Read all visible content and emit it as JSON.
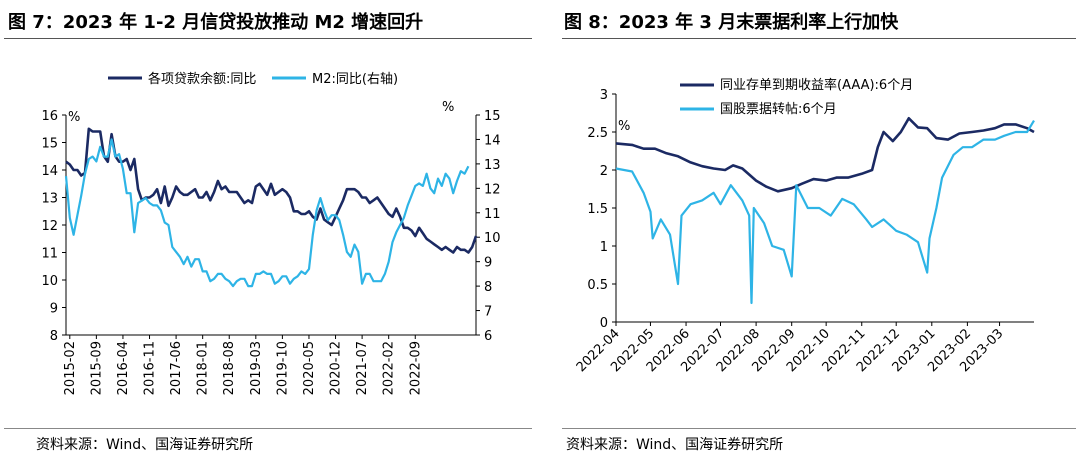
{
  "colors": {
    "navy": "#1B2A63",
    "cyan": "#2EB4E6"
  },
  "left": {
    "title": "图 7：2023 年 1-2 月信贷投放推动 M2 增速回升",
    "source": "资料来源：Wind、国海证券研究所"
  },
  "right": {
    "title": "图 8：2023 年 3 月末票据利率上行加快",
    "source": "资料来源：Wind、国海证券研究所"
  },
  "chart_data": [
    {
      "type": "line",
      "legend_position": "top",
      "y_left_unit": "%",
      "y_right_unit": "%",
      "ylim_left": [
        8,
        16
      ],
      "ylim_right": [
        6,
        15
      ],
      "y_left_ticks": [
        "8",
        "9",
        "10",
        "11",
        "12",
        "13",
        "14",
        "15",
        "16"
      ],
      "y_right_ticks": [
        "6",
        "7",
        "8",
        "9",
        "10",
        "11",
        "12",
        "13",
        "14",
        "15"
      ],
      "x_tick_labels": [
        "2015-02",
        "2015-09",
        "2016-04",
        "2016-11",
        "2017-06",
        "2018-01",
        "2018-08",
        "2019-03",
        "2019-10",
        "2020-05",
        "2020-12",
        "2021-07",
        "2022-02",
        "2022-09"
      ],
      "x_start": "2015-01",
      "series": [
        {
          "name": "各项贷款余额:同比",
          "axis": "left",
          "color": "#1B2A63",
          "values": [
            14.3,
            14.2,
            14.0,
            14.0,
            13.8,
            13.9,
            15.5,
            15.4,
            15.4,
            15.4,
            14.5,
            14.3,
            15.3,
            14.5,
            14.3,
            14.3,
            14.4,
            14.0,
            14.4,
            13.3,
            12.9,
            13.0,
            13.0,
            13.1,
            13.3,
            12.8,
            13.4,
            12.7,
            13.0,
            13.4,
            13.2,
            13.1,
            13.1,
            13.2,
            13.3,
            13.0,
            13.0,
            13.2,
            12.9,
            13.2,
            13.6,
            13.3,
            13.4,
            13.2,
            13.2,
            13.2,
            13.0,
            12.8,
            12.9,
            12.8,
            13.4,
            13.5,
            13.3,
            13.1,
            13.5,
            13.1,
            13.2,
            13.3,
            13.2,
            13.0,
            12.5,
            12.5,
            12.4,
            12.4,
            12.5,
            12.3,
            12.2,
            12.6,
            12.2,
            12.1,
            12.0,
            12.3,
            12.6,
            12.9,
            13.3,
            13.3,
            13.3,
            13.2,
            13.0,
            13.0,
            12.8,
            12.9,
            13.0,
            12.8,
            12.6,
            12.4,
            12.3,
            12.6,
            12.3,
            11.9,
            11.9,
            11.8,
            11.6,
            11.9,
            11.7,
            11.5,
            11.4,
            11.3,
            11.2,
            11.1,
            11.2,
            11.1,
            11.0,
            11.2,
            11.1,
            11.1,
            11.0,
            11.2,
            11.6
          ]
        },
        {
          "name": "M2:同比(右轴)",
          "axis": "right",
          "color": "#2EB4E6",
          "values": [
            12.5,
            10.8,
            10.1,
            10.9,
            11.7,
            12.6,
            13.2,
            13.3,
            13.1,
            13.7,
            13.3,
            13.3,
            14.0,
            13.3,
            13.4,
            12.8,
            11.8,
            11.8,
            10.2,
            11.4,
            11.5,
            11.6,
            11.4,
            11.3,
            11.3,
            11.1,
            10.6,
            10.5,
            9.6,
            9.4,
            9.2,
            8.9,
            9.2,
            8.8,
            9.1,
            9.1,
            8.6,
            8.6,
            8.2,
            8.3,
            8.5,
            8.5,
            8.3,
            8.2,
            8.0,
            8.2,
            8.3,
            8.3,
            8.0,
            8.0,
            8.5,
            8.5,
            8.6,
            8.5,
            8.5,
            8.1,
            8.2,
            8.4,
            8.4,
            8.1,
            8.3,
            8.4,
            8.6,
            8.5,
            8.7,
            10.1,
            11.1,
            11.6,
            11.1,
            10.7,
            10.9,
            10.9,
            10.7,
            10.1,
            9.4,
            9.2,
            9.7,
            9.4,
            8.1,
            8.5,
            8.5,
            8.2,
            8.2,
            8.2,
            8.5,
            9.0,
            9.8,
            10.2,
            10.5,
            10.8,
            11.3,
            11.7,
            12.1,
            12.2,
            12.1,
            12.6,
            12.0,
            11.8,
            12.4,
            12.1,
            12.6,
            12.4,
            11.8,
            12.3,
            12.7,
            12.6,
            12.9
          ]
        }
      ]
    },
    {
      "type": "line",
      "legend_position": "top",
      "y_unit": "%",
      "ylim": [
        0,
        3
      ],
      "y_ticks": [
        "0",
        "0.5",
        "1",
        "1.5",
        "2",
        "2.5",
        "3"
      ],
      "x_tick_labels": [
        "2022-04",
        "2022-05",
        "2022-06",
        "2022-07",
        "2022-08",
        "2022-09",
        "2022-10",
        "2022-11",
        "2022-12",
        "2023-01",
        "2023-02",
        "2023-03"
      ],
      "x_start": "2022-04-01",
      "x_end": "2023-03-31",
      "series": [
        {
          "name": "同业存单到期收益率(AAA):6个月",
          "color": "#1B2A63",
          "points": [
            [
              "2022-04-01",
              2.35
            ],
            [
              "2022-04-15",
              2.33
            ],
            [
              "2022-04-25",
              2.28
            ],
            [
              "2022-05-05",
              2.28
            ],
            [
              "2022-05-15",
              2.22
            ],
            [
              "2022-05-25",
              2.18
            ],
            [
              "2022-06-05",
              2.1
            ],
            [
              "2022-06-15",
              2.05
            ],
            [
              "2022-06-25",
              2.02
            ],
            [
              "2022-07-05",
              2.0
            ],
            [
              "2022-07-12",
              2.06
            ],
            [
              "2022-07-20",
              2.02
            ],
            [
              "2022-08-01",
              1.86
            ],
            [
              "2022-08-10",
              1.78
            ],
            [
              "2022-08-20",
              1.72
            ],
            [
              "2022-09-01",
              1.76
            ],
            [
              "2022-09-10",
              1.82
            ],
            [
              "2022-09-20",
              1.88
            ],
            [
              "2022-10-01",
              1.86
            ],
            [
              "2022-10-10",
              1.9
            ],
            [
              "2022-10-20",
              1.9
            ],
            [
              "2022-11-01",
              1.95
            ],
            [
              "2022-11-10",
              2.0
            ],
            [
              "2022-11-15",
              2.3
            ],
            [
              "2022-11-20",
              2.5
            ],
            [
              "2022-11-28",
              2.38
            ],
            [
              "2022-12-05",
              2.5
            ],
            [
              "2022-12-12",
              2.68
            ],
            [
              "2022-12-20",
              2.56
            ],
            [
              "2022-12-28",
              2.55
            ],
            [
              "2023-01-05",
              2.42
            ],
            [
              "2023-01-15",
              2.4
            ],
            [
              "2023-01-25",
              2.48
            ],
            [
              "2023-02-05",
              2.5
            ],
            [
              "2023-02-15",
              2.52
            ],
            [
              "2023-02-25",
              2.55
            ],
            [
              "2023-03-05",
              2.6
            ],
            [
              "2023-03-15",
              2.6
            ],
            [
              "2023-03-25",
              2.55
            ],
            [
              "2023-03-31",
              2.5
            ]
          ]
        },
        {
          "name": "国股票据转帖:6个月",
          "color": "#2EB4E6",
          "points": [
            [
              "2022-04-01",
              2.02
            ],
            [
              "2022-04-15",
              1.98
            ],
            [
              "2022-04-25",
              1.7
            ],
            [
              "2022-05-01",
              1.45
            ],
            [
              "2022-05-03",
              1.1
            ],
            [
              "2022-05-10",
              1.35
            ],
            [
              "2022-05-18",
              1.15
            ],
            [
              "2022-05-25",
              0.5
            ],
            [
              "2022-05-28",
              1.4
            ],
            [
              "2022-06-05",
              1.55
            ],
            [
              "2022-06-15",
              1.6
            ],
            [
              "2022-06-25",
              1.7
            ],
            [
              "2022-07-01",
              1.55
            ],
            [
              "2022-07-10",
              1.8
            ],
            [
              "2022-07-20",
              1.6
            ],
            [
              "2022-07-26",
              1.4
            ],
            [
              "2022-07-28",
              0.25
            ],
            [
              "2022-07-30",
              1.5
            ],
            [
              "2022-08-08",
              1.3
            ],
            [
              "2022-08-15",
              1.0
            ],
            [
              "2022-08-25",
              0.95
            ],
            [
              "2022-09-01",
              0.6
            ],
            [
              "2022-09-05",
              1.8
            ],
            [
              "2022-09-15",
              1.5
            ],
            [
              "2022-09-25",
              1.5
            ],
            [
              "2022-10-05",
              1.4
            ],
            [
              "2022-10-15",
              1.62
            ],
            [
              "2022-10-25",
              1.55
            ],
            [
              "2022-11-05",
              1.35
            ],
            [
              "2022-11-10",
              1.25
            ],
            [
              "2022-11-20",
              1.35
            ],
            [
              "2022-12-01",
              1.2
            ],
            [
              "2022-12-10",
              1.15
            ],
            [
              "2022-12-20",
              1.05
            ],
            [
              "2022-12-28",
              0.65
            ],
            [
              "2022-12-30",
              1.1
            ],
            [
              "2023-01-05",
              1.5
            ],
            [
              "2023-01-10",
              1.9
            ],
            [
              "2023-01-20",
              2.2
            ],
            [
              "2023-01-28",
              2.3
            ],
            [
              "2023-02-05",
              2.3
            ],
            [
              "2023-02-15",
              2.4
            ],
            [
              "2023-02-25",
              2.4
            ],
            [
              "2023-03-05",
              2.45
            ],
            [
              "2023-03-15",
              2.5
            ],
            [
              "2023-03-25",
              2.5
            ],
            [
              "2023-03-31",
              2.65
            ]
          ]
        }
      ]
    }
  ]
}
